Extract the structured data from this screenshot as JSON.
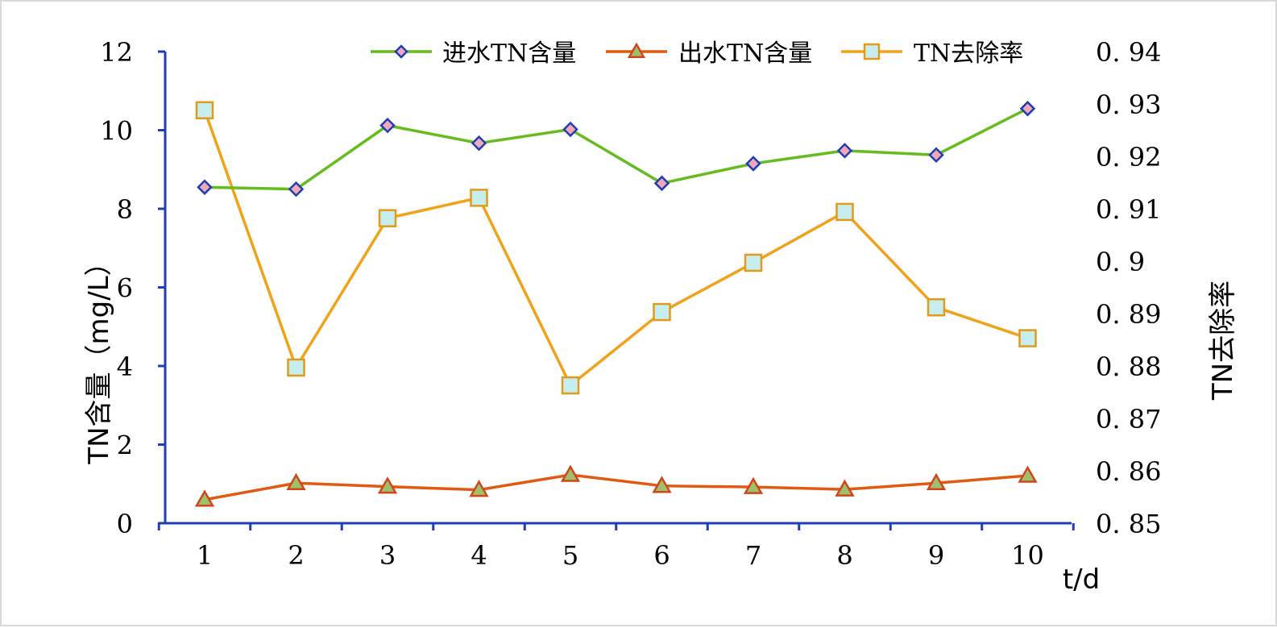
{
  "chart_data": {
    "type": "line",
    "x": [
      1,
      2,
      3,
      4,
      5,
      6,
      7,
      8,
      9,
      10
    ],
    "xlabel": "t/d",
    "ylabel_left": "TN含量（mg/L）",
    "ylabel_right": "TN去除率",
    "ylim_left": [
      0,
      12
    ],
    "yticks_left": [
      "0",
      "2",
      "4",
      "6",
      "8",
      "10",
      "12"
    ],
    "ylim_right": [
      0.85,
      0.94
    ],
    "yticks_right": [
      "0. 85",
      "0. 86",
      "0. 87",
      "0. 88",
      "0. 89",
      "0. 9",
      "0. 91",
      "0. 92",
      "0. 93",
      "0. 94"
    ],
    "grid": false,
    "legend_position": "top-center",
    "series": [
      {
        "name": "进水TN含量",
        "axis": "left",
        "marker": "diamond",
        "line_color": "#66bb1f",
        "marker_fill": "#f4a7b9",
        "marker_stroke": "#1f3fb0",
        "values": [
          8.55,
          8.5,
          10.12,
          9.67,
          10.02,
          8.65,
          9.15,
          9.48,
          9.37,
          10.55
        ]
      },
      {
        "name": "出水TN含量",
        "axis": "left",
        "marker": "triangle",
        "line_color": "#e05a12",
        "marker_fill": "#9fc06a",
        "marker_stroke": "#d0461a",
        "values": [
          0.6,
          1.02,
          0.93,
          0.85,
          1.23,
          0.95,
          0.92,
          0.86,
          1.02,
          1.21
        ]
      },
      {
        "name": "TN去除率",
        "axis": "right",
        "marker": "square",
        "line_color": "#f0a21a",
        "marker_fill": "#c6eeee",
        "marker_stroke": "#e29a1a",
        "values": [
          0.9288,
          0.8797,
          0.9082,
          0.9121,
          0.8763,
          0.8903,
          0.8997,
          0.9094,
          0.8912,
          0.8853
        ]
      }
    ]
  }
}
